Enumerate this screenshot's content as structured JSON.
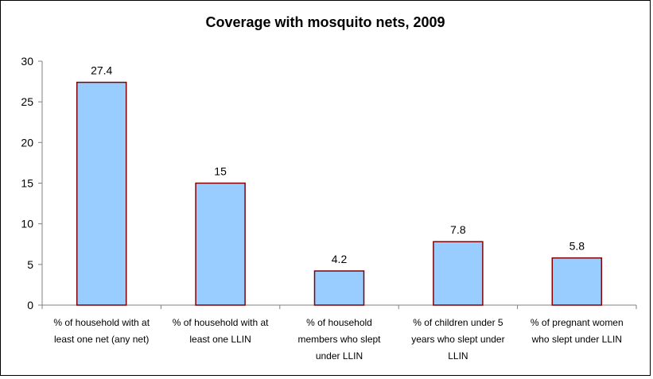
{
  "chart_data": {
    "type": "bar",
    "title": "Coverage with mosquito nets, 2009",
    "xlabel": "",
    "ylabel": "",
    "categories": [
      [
        "% of household with at",
        "least one net (any net)"
      ],
      [
        "% of household with at",
        "least one LLIN"
      ],
      [
        "% of household",
        "members who slept",
        "under LLIN"
      ],
      [
        "% of children under 5",
        "years who slept under",
        "LLIN"
      ],
      [
        "% of pregnant women",
        "who slept under LLIN"
      ]
    ],
    "values": [
      27.4,
      15,
      4.2,
      7.8,
      5.8
    ],
    "value_labels": [
      "27.4",
      "15",
      "4.2",
      "7.8",
      "5.8"
    ],
    "ylim": [
      0,
      30
    ],
    "yticks": [
      0,
      5,
      10,
      15,
      20,
      25,
      30
    ],
    "grid": false,
    "legend": "none",
    "colors": {
      "bar_fill": "#99CCFF",
      "bar_stroke": "#800000",
      "axis": "#808080"
    }
  }
}
